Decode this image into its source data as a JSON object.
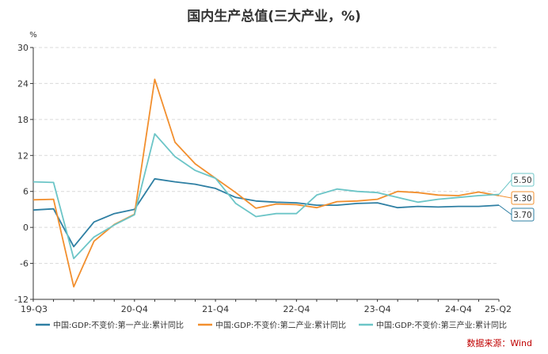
{
  "chart_data": {
    "type": "line",
    "title": "国内生产总值(三大产业，%)",
    "ylabel": "%",
    "ylim": [
      -12,
      30
    ],
    "yticks": [
      -12,
      -6,
      0,
      6,
      12,
      18,
      24,
      30
    ],
    "grid": true,
    "legend_position": "bottom",
    "x": [
      "19-Q3",
      "19-Q4",
      "20-Q1",
      "20-Q2",
      "20-Q3",
      "20-Q4",
      "21-Q1",
      "21-Q2",
      "21-Q3",
      "21-Q4",
      "22-Q1",
      "22-Q2",
      "22-Q3",
      "22-Q4",
      "23-Q1",
      "23-Q2",
      "23-Q3",
      "23-Q4",
      "24-Q1",
      "24-Q2",
      "24-Q3",
      "24-Q4",
      "25-Q1",
      "25-Q2"
    ],
    "xtick_labels": [
      {
        "index": 0,
        "label": "19-Q3"
      },
      {
        "index": 5,
        "label": "20-Q4"
      },
      {
        "index": 9,
        "label": "21-Q4"
      },
      {
        "index": 13,
        "label": "22-Q4"
      },
      {
        "index": 17,
        "label": "23-Q4"
      },
      {
        "index": 21,
        "label": "24-Q4"
      },
      {
        "index": 23,
        "label": "25-Q2"
      }
    ],
    "series": [
      {
        "name": "中国:GDP:不变价:第一产业:累计同比",
        "color": "#2e7fa3",
        "values": [
          2.9,
          3.1,
          -3.2,
          0.9,
          2.3,
          3.0,
          8.1,
          7.6,
          7.2,
          6.5,
          5.0,
          4.4,
          4.2,
          4.1,
          3.7,
          3.7,
          4.0,
          4.1,
          3.3,
          3.5,
          3.4,
          3.5,
          3.5,
          3.7
        ]
      },
      {
        "name": "中国:GDP:不变价:第二产业:累计同比",
        "color": "#f28f2e",
        "values": [
          4.6,
          4.7,
          -9.9,
          -2.3,
          0.5,
          2.2,
          24.7,
          14.2,
          10.6,
          8.2,
          5.8,
          3.2,
          3.9,
          3.8,
          3.3,
          4.3,
          4.4,
          4.7,
          6.0,
          5.8,
          5.4,
          5.3,
          5.9,
          5.3
        ]
      },
      {
        "name": "中国:GDP:不变价:第三产业:累计同比",
        "color": "#6cc5c7",
        "values": [
          7.6,
          7.5,
          -5.2,
          -1.6,
          0.4,
          2.1,
          15.6,
          11.8,
          9.5,
          8.2,
          4.0,
          1.8,
          2.3,
          2.3,
          5.4,
          6.4,
          6.0,
          5.8,
          5.0,
          4.2,
          4.7,
          5.0,
          5.3,
          5.5
        ]
      }
    ],
    "end_labels": [
      "5.50",
      "5.30",
      "3.70"
    ]
  },
  "source_text": "数据来源：Wind"
}
